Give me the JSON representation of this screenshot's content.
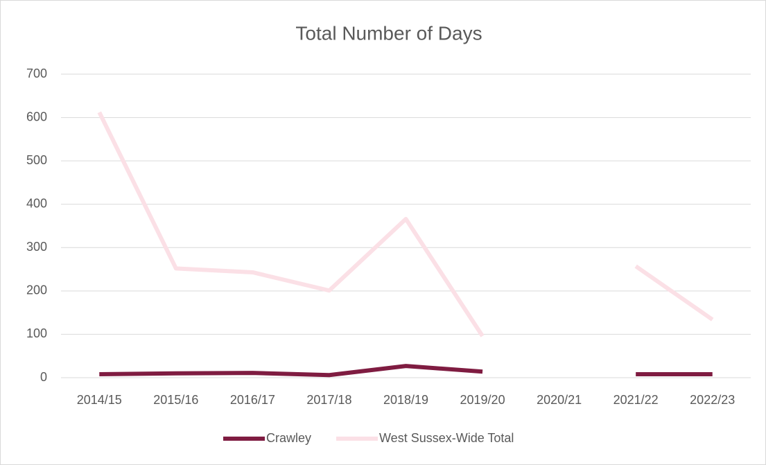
{
  "chart_data": {
    "type": "line",
    "title": "Total Number of Days",
    "categories": [
      "2014/15",
      "2015/16",
      "2016/17",
      "2017/18",
      "2018/19",
      "2019/20",
      "2020/21",
      "2021/22",
      "2022/23"
    ],
    "series": [
      {
        "name": "Crawley",
        "color": "#7f1c41",
        "values": [
          8,
          10,
          11,
          6,
          27,
          14,
          null,
          8,
          8
        ]
      },
      {
        "name": "West Sussex-Wide Total",
        "color": "#fbe0e6",
        "values": [
          612,
          252,
          243,
          201,
          366,
          96,
          null,
          257,
          134
        ]
      }
    ],
    "ylim": [
      0,
      700
    ],
    "yticks": [
      0,
      100,
      200,
      300,
      400,
      500,
      600,
      700
    ],
    "grid": true,
    "legend": "bottom"
  }
}
